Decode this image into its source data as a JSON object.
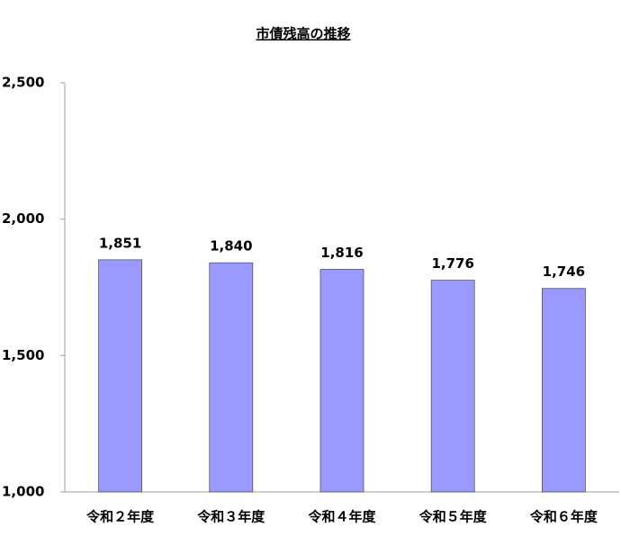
{
  "chart_data": {
    "type": "bar",
    "title": "市債残高の推移",
    "categories": [
      "令和２年度",
      "令和３年度",
      "令和４年度",
      "令和５年度",
      "令和６年度"
    ],
    "values": [
      1851,
      1840,
      1816,
      1776,
      1746
    ],
    "value_labels": [
      "1,851",
      "1,840",
      "1,816",
      "1,776",
      "1,746"
    ],
    "color": "#9999ff",
    "ylim": [
      1000,
      2500
    ],
    "yticks": [
      {
        "value": 1000,
        "label": "1,000"
      },
      {
        "value": 1500,
        "label": "1,500"
      },
      {
        "value": 2000,
        "label": "2,000"
      },
      {
        "value": 2500,
        "label": "2,500"
      }
    ],
    "grid": false
  }
}
